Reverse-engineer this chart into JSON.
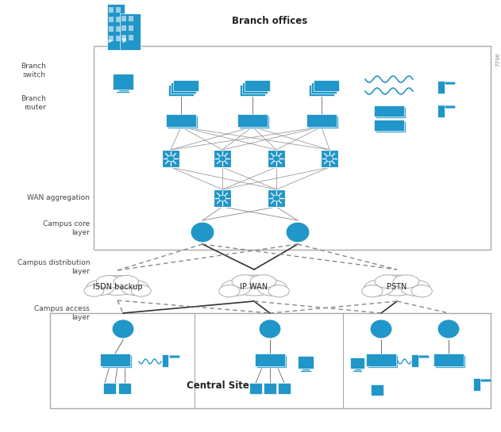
{
  "bg_color": "#ffffff",
  "cisco_blue": "#2196c8",
  "mid_blue": "#44aad4",
  "border_color": "#aaaaaa",
  "text_color": "#444444",
  "dark_text": "#222222",
  "labels": {
    "central_site": "Central Site",
    "campus_access": "Campus access\nlayer",
    "campus_dist": "Campus distribution\nlayer",
    "campus_core": "Campus core\nlayer",
    "wan_agg": "WAN aggregation",
    "isdn": "ISDN backup",
    "ip_wan": "IP WAN",
    "pstn": "PSTN",
    "branch_router": "Branch\nrouter",
    "branch_switch": "Branch\nswitch",
    "branch_offices": "Branch offices",
    "watermark": "7796"
  },
  "figsize": [
    6.31,
    5.45
  ],
  "dpi": 100
}
